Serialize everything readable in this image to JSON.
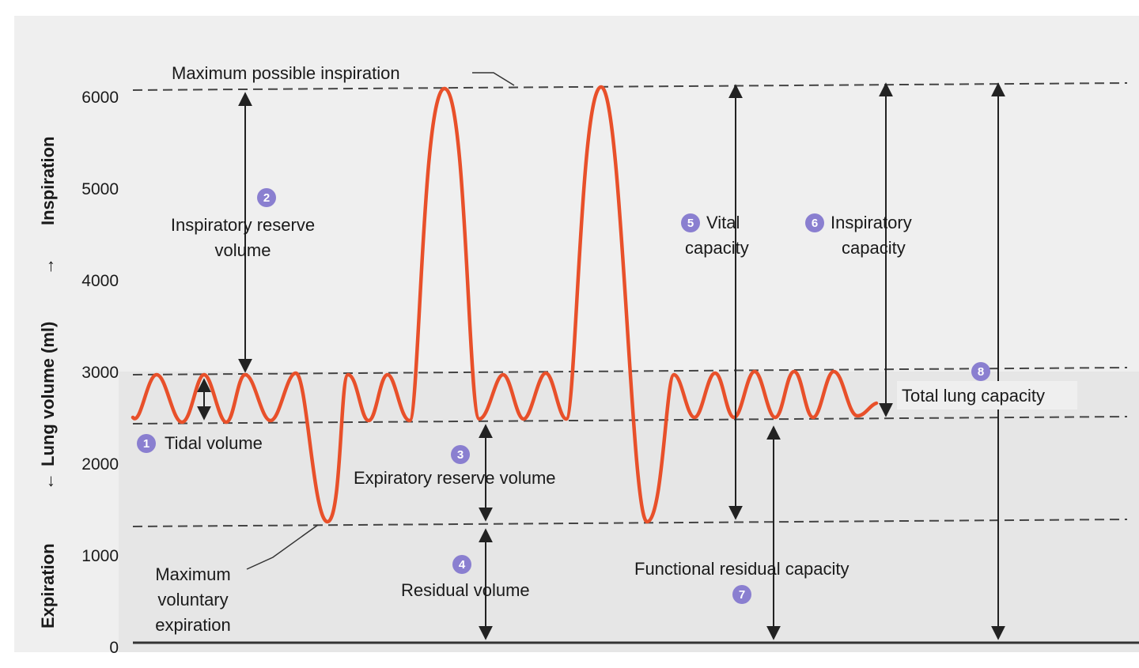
{
  "colors": {
    "background_band": "#ececec",
    "trace": "#e8502a",
    "badge": "#8a7fd0",
    "dashed": "#444444",
    "arrow": "#222222"
  },
  "axis": {
    "title_top": "Inspiration",
    "title_mid": "Lung volume (ml)",
    "title_bottom": "Expiration",
    "ticks": [
      "0",
      "1000",
      "2000",
      "3000",
      "4000",
      "5000",
      "6000"
    ]
  },
  "labels": {
    "max_inspiration": "Maximum possible inspiration",
    "tidal_volume": "Tidal volume",
    "irv_line1": "Inspiratory reserve",
    "irv_line2": "volume",
    "erv": "Expiratory reserve volume",
    "residual_volume": "Residual volume",
    "max_exp_line1": "Maximum",
    "max_exp_line2": "voluntary",
    "max_exp_line3": "expiration",
    "vital_line1": "Vital",
    "vital_line2": "capacity",
    "ic_line1": "Inspiratory",
    "ic_line2": "capacity",
    "tlc": "Total lung capacity",
    "frc": "Functional residual capacity"
  },
  "badges": [
    "1",
    "2",
    "3",
    "4",
    "5",
    "6",
    "7",
    "8"
  ]
}
